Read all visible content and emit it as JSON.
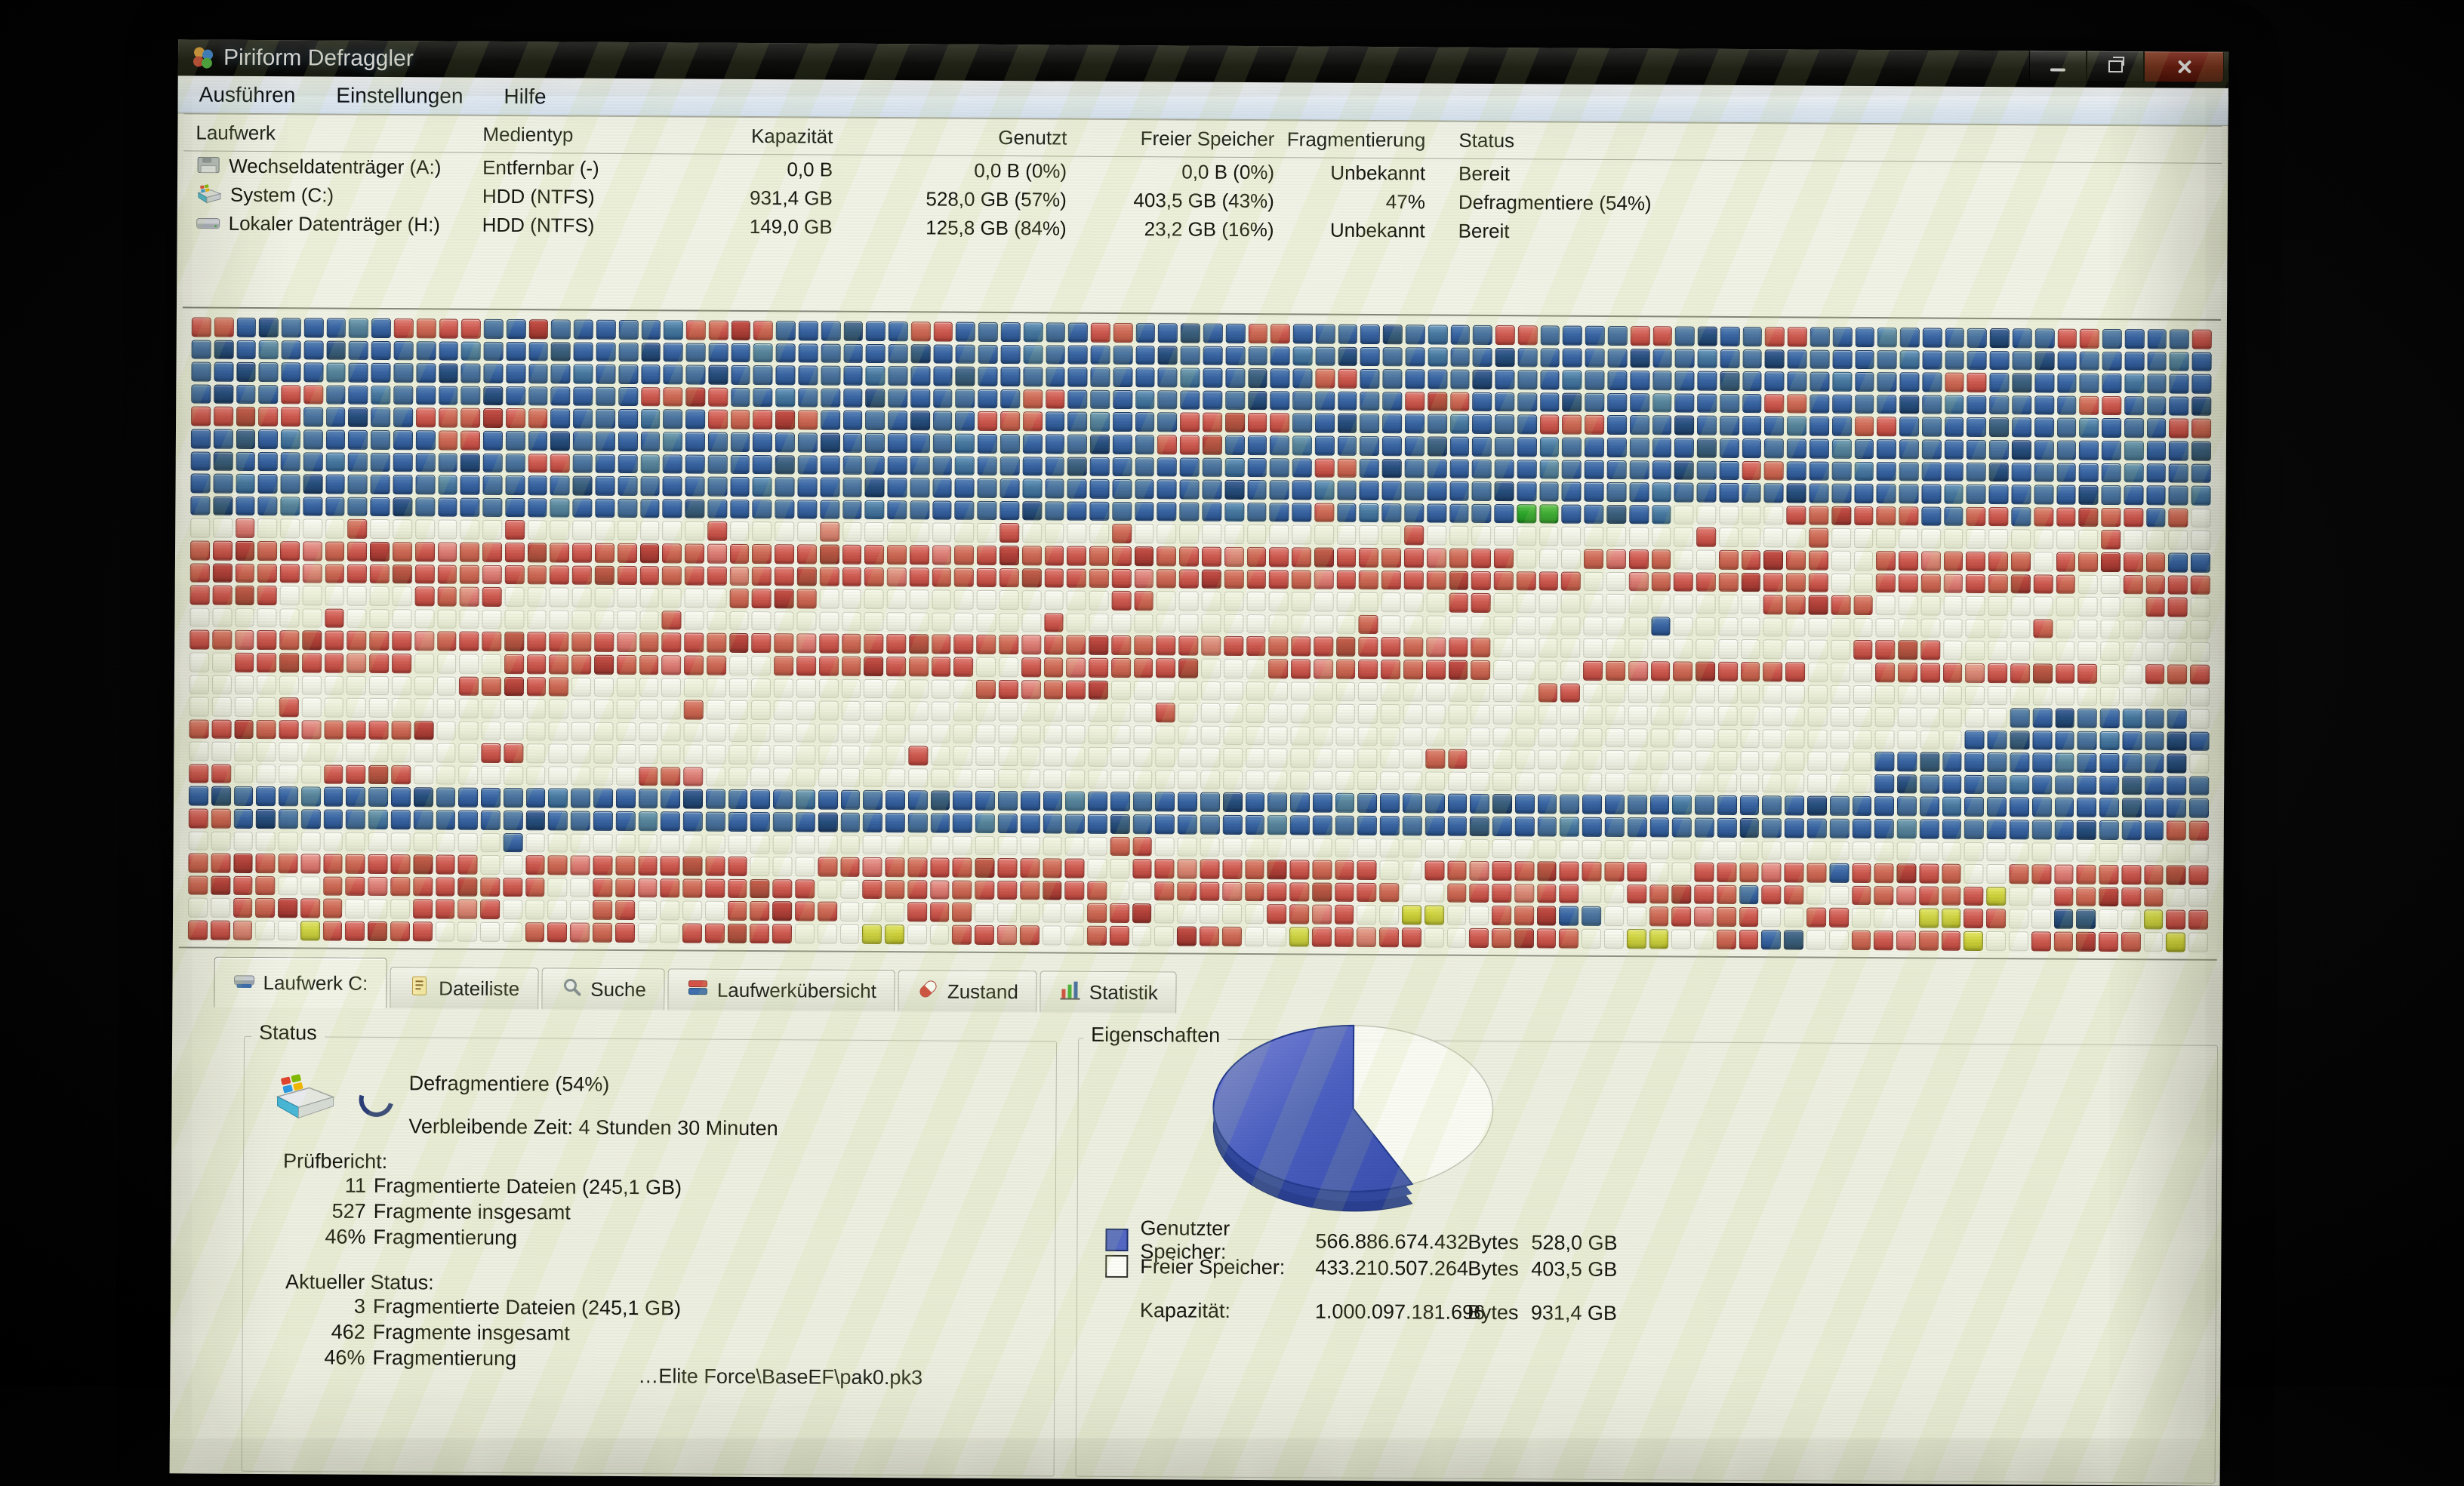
{
  "window": {
    "title": "Piriform Defraggler"
  },
  "menu": {
    "items": [
      "Ausführen",
      "Einstellungen",
      "Hilfe"
    ]
  },
  "drive_table": {
    "columns": [
      "Laufwerk",
      "Medientyp",
      "Kapazität",
      "Genutzt",
      "Freier Speicher",
      "Fragmentierung",
      "Status"
    ],
    "rows": [
      {
        "icon": "floppy-drive",
        "name": "Wechseldatenträger (A:)",
        "type": "Entfernbar (-)",
        "capacity": "0,0 B",
        "used": "0,0 B (0%)",
        "free": "0,0 B (0%)",
        "frag": "Unbekannt",
        "status": "Bereit"
      },
      {
        "icon": "system-drive",
        "name": "System (C:)",
        "type": "HDD (NTFS)",
        "capacity": "931,4 GB",
        "used": "528,0 GB (57%)",
        "free": "403,5 GB (43%)",
        "frag": "47%",
        "status": "Defragmentiere (54%)"
      },
      {
        "icon": "local-drive",
        "name": "Lokaler Datenträger (H:)",
        "type": "HDD (NTFS)",
        "capacity": "149,0 GB",
        "used": "125,8 GB (84%)",
        "free": "23,2 GB (16%)",
        "frag": "Unbekannt",
        "status": "Bereit"
      }
    ]
  },
  "map": {
    "palette": {
      "b": "#3a66a4",
      "d": "#27507e",
      "t": "#49799f",
      "r": "#cf5c52",
      "k": "#b2423a",
      "p": "#dd8078",
      "w": "#eef0e3",
      "g": "#2ea82c",
      "y": "#cfd23c"
    },
    "rows": [
      "rrbdbbbtbrrrrbbkbbbbbtrrkrbbbdbbrrbbbtbbrrbbdbbrrbbbbdbtbbrrbbbbrrbdbbrrbbbtbbbbdbbrrbbbbr",
      "bdbtbbdbbbbbtbbbdbbbdbbbbtbbbbbbdbbbbtbbbbbdbbbbbtbdbbbtbbdbbbbbdbbtbbdbbbbbtbbbbbdbbbbbtb",
      "bbdbbbtbbbbdbbbbbtbbbbbdbbbbbbtbbbdbbbbbbbbbtbbdbbrrbbbbbdbbbtbbbbbbdbbbbtbbbbrrbdbbbbtbbb",
      "bdbbrrbbtbbbbdbbbbbbrrkrbbtbbbdbbbbbbrrbbbtbbbbdbbbbbbrkrbbbbdbbbtbbbbrrbbbbdbtbbbbbrrbbbd",
      "rrkrrbbdbbrrrkrrbbbbtbbrrrkrbbbbdbbrrrbbtbbbrrkrrbbdbbbbtbbbrrrbbbdbbbbtbbrrbbbbdbbbtbbbrr",
      "bbdbtbbbbbbrrbbbdbbbbtbbbbbbdbbbbbtbbbbbdbbrrkbbbtbbbbbdbbbbtbbbbbbdbbbbbtbbbbbbbdbbbbtbbd",
      "bdbbbbtbbbbbdbbrrbbbtbbbbbdbbbbbbbtbbbbdbbbbbbtbbbrrbdbbbbbbtbbbbbdbbrrbbbtbbbbbdbbbbbtbbb",
      "bbtbbdbbbbbtbbbbbdbbbbbbbtbbbbdbbbbbbtbbbbbbbbdbbbtbbbbbbbdbbbbbbtbbbbbdbbbbbbtbbbbbdbbbbt",
      "bdbbtbbbbdbbbbbbtbbbbbdbbbbbbbtbbbbbbdbbbbbbbbtbbbrbtbbbbbbggbbdbtwwwwwrrkrrrbbrrbrrkrrbr",
      "wwpwwwwrwwwwwwrwwwwwwwwrwwwwpwwwwwwwrwwwwrwwwwwwwwwwwwrwwwwwwwwwwwwrwwwwrwwwwwwwwwwwwrwwww",
      "rrkrrprrkrrprrrkrrrrkrrprrrrkrrrrprrkrrrrrkrrrprrrkrrrrprrrwwwrprrwwrrkrrwwrrprrrrwrrkrrbb",
      "rkrrrprrrkrrrprrrrkrrrrrprrkrrrprrrrrkrrrrprrkrrrrprrrrrkrrrrrwwprrrrkrrrwwrrrprrkrrwwrrrr",
      "rrkrwwwwwwrrprwwwwwwwwwwrrkrwwwwwwwwwwwwwrrwwwwwwwwwwwwwrrwwwwwwwwwwwwrrkrrwwwwwwwwwwwwrrw",
      "wwwwwwrwwwwwwwwwwwwwwrwwwwwwwwwwwwwwwwrwwwwwwwwwwwwwrwwwwwwwwwwwwbwwwwwwwwwwwwwwwwrwwwwww",
      "rrprrkrrrrprrrkrrrrprrrrkrrprrrrkrrrrprrkrrrrprrrrrkrrrprrwwwwwwwwwwwwwwwwrrkrwwwwwwwwwwww",
      "wwrrkrrprrwwwwrrrrkrrprrwwrrrrkrrrrwwrrprrrrkwwwrrprrrrrkrwwwwrrprrkrrrrwwwrrrrprrkrrwwrrr",
      "wwwwwwwwwwwwrrkrrwwwwwwwwwwwwwwwwwwrrprrkwwwwwwwwwwwwwwwwwwwrrwwwwwwwwwwwwwwwwwwwwwwwwwww",
      "wwwwrwwwwwwwwwwwwwwwwwrwwwwwwwwwwwwwwwwwwwwrwwwwwwwwwwwwwwwwwwwwwwwwwwwwwwwwwwwwwbbdbbtbb",
      "rrkrrprrrrkwwwwwwwwwwwwwwwwwwwwwwwwwwwwwwwwwwwwwwwwwwwwwwwwwwwwwwwwwwwwwwwwwwwwbbdbbbtbbdbb",
      "wwwwwwwwwwwwwrrwwwwwwwwwwwwwwwwwrwwwwwwwwwwwwwwwwwwwwwwrrwwwwwwwwwwwwwwwwwwbbdbbbbbtbbbbd",
      "rrwwwwrrkrwwwwwwwwwwrrpwwwwwwwwwwwwwwwwwwwwwwwwwwwwwwwwwwwwwwwwwwwwwwwwwwwwbdbbbbtbbbbdbbbb",
      "bdbbbtbbbbdbbbbbtbbbbbdbbbbtbbbbbdbbbbbtbbbbbbdbbbbtbbbbbbdbbbbbbbtbbbbbdbbbbbtbbbbbbbdbbb",
      "rrbdbbbbtbbbbbbdbbbbtbbbbbbbdbbbbbbtbbbbbdbbbbbbtbbbbbbbbdbbbtbbbbbbbdbbbbbbtbbbbbbbdbbbrr",
      "wwwwwwwwwwwwwwbwwwwwwwwwwwwwwwwwwwwwwwwwwrrwwwwwwwwwwwwwwwwwwwwwwwwwwwwwwwwwwwwwwwwwwwwww",
      "rrkrrprrrrkrrwwrrprrrrkrrwwwrrprrrrkrrrrwwrrprrrkrrrrwwrrprrkrrrrwwrrrprrbrrkrrwwrrprrrrkr",
      "rkrrwwrrprrrkrrrwwrrprrrrkrrwwrrrprrrrkrrwwrrrprrrkrrrwwrrrprrwwrrkrrbrrwwrrprrrywwrrkrrww",
      "wwrrkrrwwwrrprwwwwrrwwwwrrkrrwwwrrrwwwwwrrkwwwwwrrprwwyywwrrkbbwwrrprrwwrrwwwyyrrwwddwwyrr",
      "rrpwwyrrkrrwwwwrrprrwwrrkrrwwwyywwrrprwwrrwwkrrwwyrrprrwwrrkrrwwyywwrrbdwwrrprrywwrrkrrwyw"
    ]
  },
  "tabs": {
    "items": [
      {
        "label": "Laufwerk C:",
        "icon": "drive-icon",
        "active": true
      },
      {
        "label": "Dateiliste",
        "icon": "filelist-icon",
        "active": false
      },
      {
        "label": "Suche",
        "icon": "search-icon",
        "active": false
      },
      {
        "label": "Laufwerkübersicht",
        "icon": "drive-map-icon",
        "active": false
      },
      {
        "label": "Zustand",
        "icon": "health-icon",
        "active": false
      },
      {
        "label": "Statistik",
        "icon": "stats-icon",
        "active": false
      }
    ]
  },
  "status_panel": {
    "group_label": "Status",
    "state_line": "Defragmentiere (54%)",
    "time_line": "Verbleibende Zeit: 4 Stunden 30 Minuten",
    "check_report": {
      "label": "Prüfbericht:",
      "lines": [
        {
          "num": "11",
          "text": "Fragmentierte Dateien (245,1 GB)"
        },
        {
          "num": "527",
          "text": "Fragmente insgesamt"
        },
        {
          "num": "46%",
          "text": "Fragmentierung"
        }
      ]
    },
    "current_status": {
      "label": "Aktueller Status:",
      "lines": [
        {
          "num": "3",
          "text": "Fragmentierte Dateien (245,1 GB)"
        },
        {
          "num": "462",
          "text": "Fragmente insgesamt"
        },
        {
          "num": "46%",
          "text": "Fragmentierung"
        }
      ]
    },
    "working_file": "…Elite Force\\BaseEF\\pak0.pk3"
  },
  "properties_panel": {
    "group_label": "Eigenschaften",
    "rows": [
      {
        "swatch": "used",
        "label": "Genutzter Speicher:",
        "bytes": "566.886.674.432",
        "unit": "Bytes",
        "size": "528,0 GB"
      },
      {
        "swatch": "free",
        "label": "Freier Speicher:",
        "bytes": "433.210.507.264",
        "unit": "Bytes",
        "size": "403,5 GB"
      },
      {
        "swatch": "none",
        "label": "Kapazität:",
        "bytes": "1.000.097.181.696",
        "unit": "Bytes",
        "size": "931,4 GB"
      }
    ]
  },
  "chart_data": {
    "type": "pie",
    "title": "Eigenschaften",
    "labels": [
      "Genutzter Speicher",
      "Freier Speicher"
    ],
    "values_percent": [
      57,
      43
    ],
    "values_bytes": [
      566886674432,
      433210507264
    ],
    "colors": [
      "#4a5fc0",
      "#fbfcf5"
    ],
    "legend_position": "below"
  }
}
